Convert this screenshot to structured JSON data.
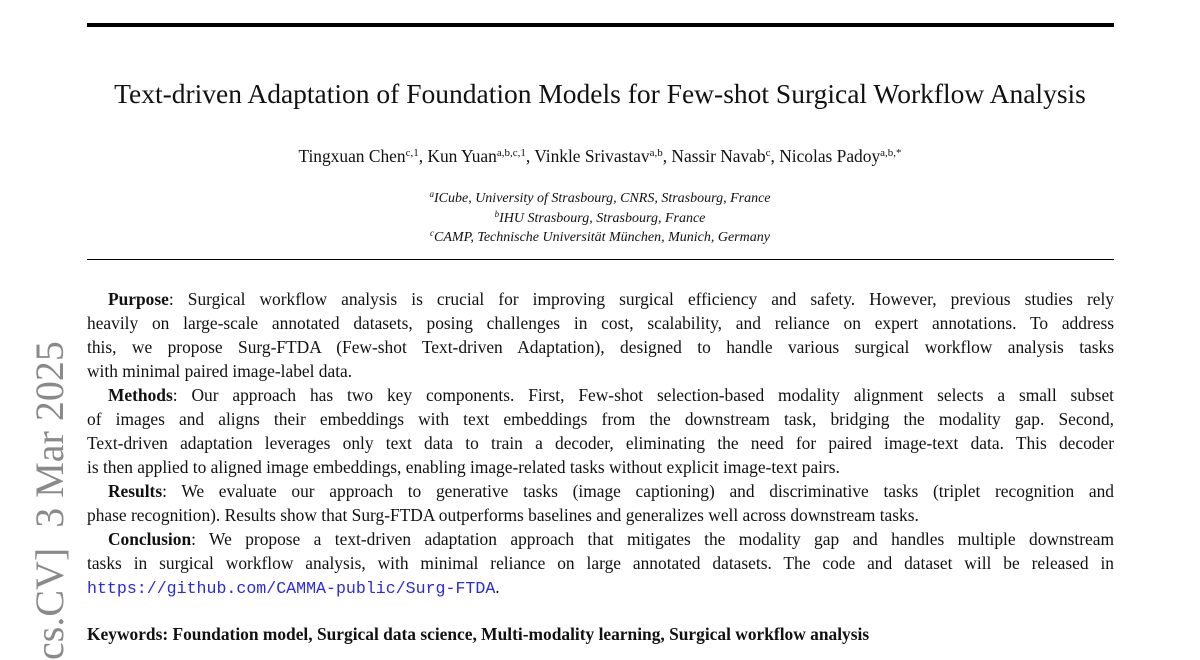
{
  "title": "Text-driven Adaptation of Foundation Models for Few-shot Surgical Workflow Analysis",
  "authors": [
    {
      "name": "Tingxuan Chen",
      "sup": "c,1"
    },
    {
      "name": "Kun Yuan",
      "sup": "a,b,c,1"
    },
    {
      "name": "Vinkle Srivastav",
      "sup": "a,b"
    },
    {
      "name": "Nassir Navab",
      "sup": "c"
    },
    {
      "name": "Nicolas Padoy",
      "sup": "a,b,*"
    }
  ],
  "affiliations": [
    {
      "mark": "a",
      "text": "ICube, University of Strasbourg, CNRS, Strasbourg, France"
    },
    {
      "mark": "b",
      "text": "IHU Strasbourg, Strasbourg, France"
    },
    {
      "mark": "c",
      "text": "CAMP, Technische Universität München, Munich, Germany"
    }
  ],
  "abstract": {
    "purpose": {
      "label": "Purpose",
      "lines": [
        ": Surgical workflow analysis is crucial for improving surgical efficiency and safety. However, previous studies rely",
        "heavily on large-scale annotated datasets, posing challenges in cost, scalability, and reliance on expert annotations. To address",
        "this, we propose Surg-FTDA (Few-shot Text-driven Adaptation), designed to handle various surgical workflow analysis tasks",
        "with minimal paired image-label data."
      ]
    },
    "methods": {
      "label": "Methods",
      "lines": [
        ": Our approach has two key components. First, Few-shot selection-based modality alignment selects a small subset",
        "of images and aligns their embeddings with text embeddings from the downstream task, bridging the modality gap. Second,",
        "Text-driven adaptation leverages only text data to train a decoder, eliminating the need for paired image-text data. This decoder",
        "is then applied to aligned image embeddings, enabling image-related tasks without explicit image-text pairs."
      ]
    },
    "results": {
      "label": "Results",
      "lines": [
        ": We evaluate our approach to generative tasks (image captioning) and discriminative tasks (triplet recognition and",
        "phase recognition). Results show that Surg-FTDA outperforms baselines and generalizes well across downstream tasks."
      ]
    },
    "conclusion": {
      "label": "Conclusion",
      "lines": [
        ": We propose a text-driven adaptation approach that mitigates the modality gap and handles multiple downstream",
        "tasks in surgical workflow analysis, with minimal reliance on large annotated datasets. The code and dataset will be released in"
      ],
      "link": "https://github.com/CAMMA-public/Surg-FTDA",
      "after_link": "."
    }
  },
  "keywords": "Keywords: Foundation model, Surgical data science, Multi-modality learning, Surgical workflow analysis",
  "arxiv_stamp": "cs.CV]  3 Mar 2025",
  "colors": {
    "link": "#2a2ae0",
    "stamp": "#8a8a8a"
  }
}
